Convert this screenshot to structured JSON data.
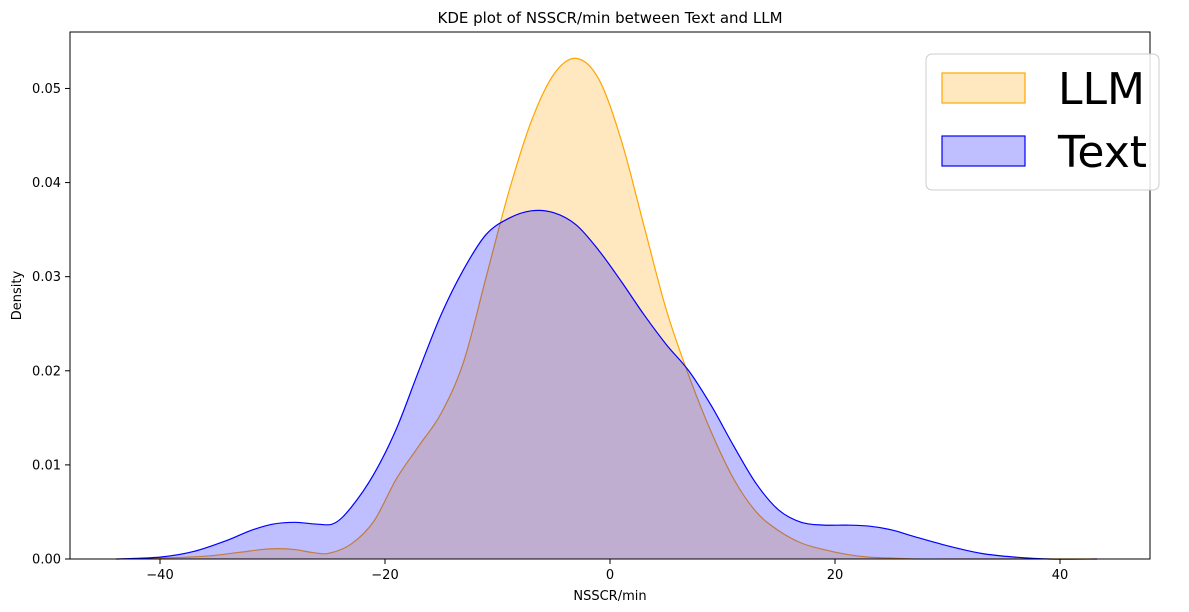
{
  "chart_data": {
    "type": "area",
    "title": "KDE plot of NSSCR/min between Text and LLM",
    "xlabel": "NSSCR/min",
    "ylabel": "Density",
    "xlim": [
      -48,
      48
    ],
    "ylim": [
      0,
      0.056
    ],
    "xticks": [
      -40,
      -20,
      0,
      20,
      40
    ],
    "xtick_labels": [
      "−40",
      "−20",
      "0",
      "20",
      "40"
    ],
    "yticks": [
      0.0,
      0.01,
      0.02,
      0.03,
      0.04,
      0.05
    ],
    "ytick_labels": [
      "0.00",
      "0.01",
      "0.02",
      "0.03",
      "0.04",
      "0.05"
    ],
    "grid": false,
    "legend_position": "top-right",
    "series": [
      {
        "name": "LLM",
        "color": "#ffa500",
        "fill": "#ffe6bf",
        "x": [
          -43.9,
          -40,
          -36,
          -33,
          -31,
          -29.5,
          -28,
          -26.5,
          -25,
          -23,
          -21,
          -19,
          -17,
          -15,
          -13,
          -11,
          -9,
          -7,
          -5,
          -3,
          -1,
          1,
          3,
          5,
          7,
          9,
          11,
          13,
          15,
          17,
          19,
          21,
          23,
          25,
          27,
          30,
          34,
          38,
          43.3
        ],
        "values": [
          0.0,
          0.0001,
          0.0003,
          0.0007,
          0.001,
          0.0011,
          0.001,
          0.0007,
          0.0006,
          0.0016,
          0.004,
          0.0085,
          0.012,
          0.0155,
          0.021,
          0.03,
          0.039,
          0.0465,
          0.0515,
          0.0532,
          0.051,
          0.0445,
          0.0355,
          0.0265,
          0.0195,
          0.0135,
          0.0085,
          0.005,
          0.003,
          0.0017,
          0.001,
          0.0005,
          0.0002,
          0.0001,
          0.0,
          0.0,
          0.0,
          0.0,
          0.0
        ]
      },
      {
        "name": "Text",
        "color": "#0000ff",
        "fill": "#bfbfff",
        "x": [
          -43.9,
          -40,
          -37,
          -34,
          -32,
          -30,
          -28,
          -26,
          -24.5,
          -23,
          -21,
          -19,
          -17,
          -15,
          -13,
          -11,
          -9,
          -7,
          -5,
          -3,
          -1,
          1,
          3,
          5,
          7,
          9,
          11,
          13,
          15,
          17,
          19,
          21,
          23,
          25,
          27,
          30,
          33,
          36,
          39,
          43.3
        ],
        "values": [
          0.0,
          0.0002,
          0.0008,
          0.002,
          0.003,
          0.0037,
          0.0039,
          0.0037,
          0.0038,
          0.0055,
          0.009,
          0.0138,
          0.02,
          0.026,
          0.0308,
          0.0345,
          0.0362,
          0.037,
          0.0368,
          0.0355,
          0.0328,
          0.0295,
          0.026,
          0.0228,
          0.02,
          0.0163,
          0.012,
          0.008,
          0.0052,
          0.0039,
          0.0036,
          0.0036,
          0.0035,
          0.0031,
          0.0024,
          0.0014,
          0.0006,
          0.0002,
          0.0,
          0.0
        ]
      }
    ]
  }
}
